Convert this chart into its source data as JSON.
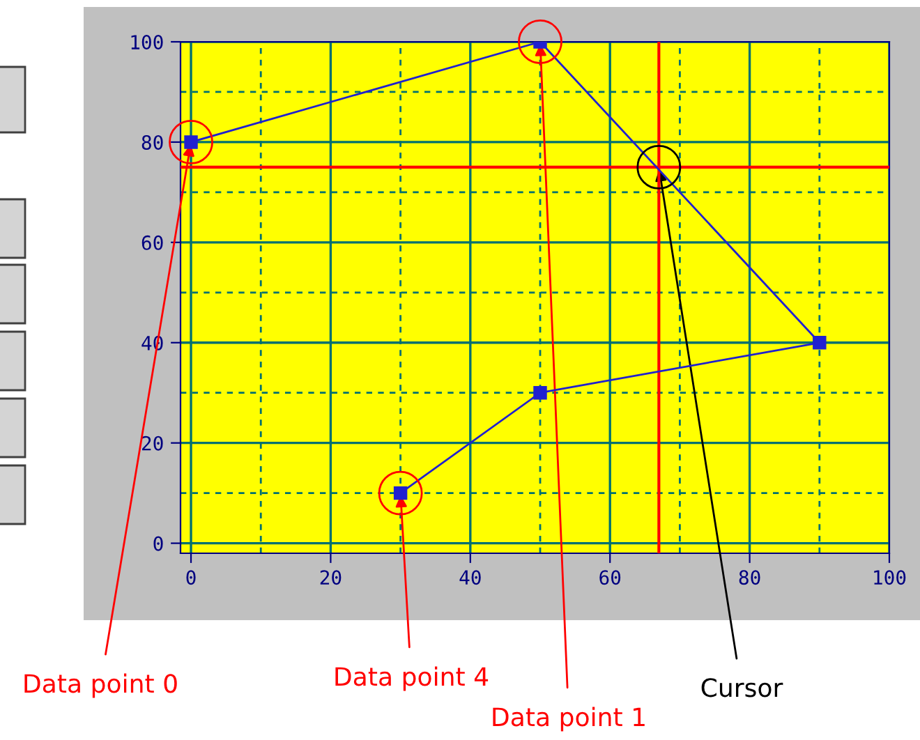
{
  "chart_data": {
    "type": "line",
    "x": [
      0,
      50,
      90,
      50,
      30
    ],
    "series": [
      {
        "color": "#2020d0",
        "values": [
          80,
          100,
          40,
          30,
          10
        ]
      }
    ],
    "xlim": [
      -1.5,
      100
    ],
    "ylim": [
      -2,
      100
    ],
    "xticks": [
      0,
      {
        "value": 10,
        "label": null
      },
      20,
      {
        "value": 30,
        "label": null
      },
      40,
      {
        "value": 50,
        "label": null
      },
      60,
      {
        "value": 70,
        "label": null
      },
      80,
      {
        "value": 90,
        "label": null
      },
      100
    ],
    "yticks": [
      0,
      {
        "value": 10,
        "label": null
      },
      20,
      {
        "value": 30,
        "label": null
      },
      40,
      {
        "value": 50,
        "label": null
      },
      60,
      {
        "value": 70,
        "label": null
      },
      80,
      {
        "value": 90,
        "label": null
      },
      100
    ],
    "grid": true,
    "marker": "square",
    "line_style": "solid",
    "ref_lines": [
      {
        "axis": "x",
        "value": 67,
        "color": "#ff0000"
      },
      {
        "axis": "y",
        "value": 75,
        "color": "#ff0000"
      }
    ],
    "annotations": [
      {
        "text": "Data point 0",
        "x": 0,
        "y": 80
      },
      {
        "text": "Data point 4",
        "x": 30,
        "y": 10
      },
      {
        "text": "Data point 1",
        "x": 50,
        "y": 100
      },
      {
        "text": "Cursor",
        "x": 67,
        "y": 75
      }
    ]
  }
}
